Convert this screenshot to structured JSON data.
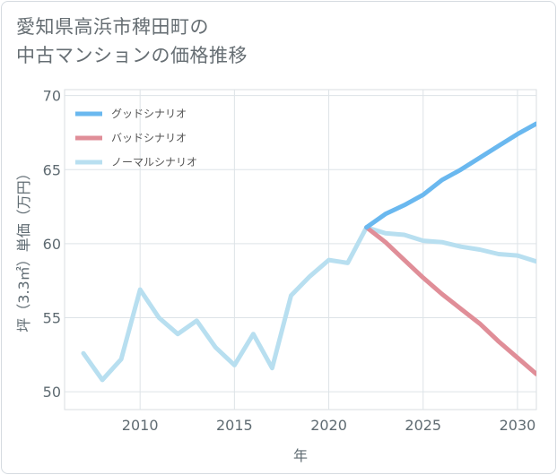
{
  "title_lines": [
    "愛知県高浜市稗田町の",
    "中古マンションの価格推移"
  ],
  "chart_data": {
    "type": "line",
    "xlabel": "年",
    "ylabel": "坪（3.3㎡）単価（万円）",
    "xlim": [
      2006,
      2031
    ],
    "ylim": [
      48.8,
      70.4
    ],
    "x_ticks": [
      2010,
      2015,
      2020,
      2025,
      2030
    ],
    "y_ticks": [
      50,
      55,
      60,
      65,
      70
    ],
    "grid": true,
    "legend_position": "top-left",
    "series": [
      {
        "name": "グッドシナリオ",
        "color": "#6ab8ef",
        "x": [
          2022,
          2023,
          2024,
          2025,
          2026,
          2027,
          2028,
          2029,
          2030,
          2031
        ],
        "y": [
          61.1,
          62.0,
          62.6,
          63.3,
          64.3,
          65.0,
          65.8,
          66.6,
          67.4,
          68.1
        ]
      },
      {
        "name": "バッドシナリオ",
        "color": "#e08e98",
        "x": [
          2022,
          2023,
          2024,
          2025,
          2026,
          2027,
          2028,
          2029,
          2030,
          2031
        ],
        "y": [
          61.1,
          60.1,
          58.9,
          57.7,
          56.6,
          55.6,
          54.6,
          53.4,
          52.3,
          51.2
        ]
      },
      {
        "name": "ノーマルシナリオ",
        "color": "#b8dff0",
        "x": [
          2007,
          2008,
          2009,
          2010,
          2011,
          2012,
          2013,
          2014,
          2015,
          2016,
          2017,
          2018,
          2019,
          2020,
          2021,
          2022,
          2023,
          2024,
          2025,
          2026,
          2027,
          2028,
          2029,
          2030,
          2031
        ],
        "y": [
          52.6,
          50.8,
          52.2,
          56.9,
          55.0,
          53.9,
          54.8,
          53.0,
          51.8,
          53.9,
          51.6,
          56.5,
          57.8,
          58.9,
          58.7,
          61.1,
          60.7,
          60.6,
          60.2,
          60.1,
          59.8,
          59.6,
          59.3,
          59.2,
          58.8
        ]
      }
    ]
  }
}
